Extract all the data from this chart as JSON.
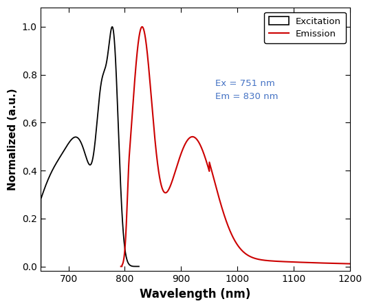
{
  "xlabel": "Wavelength (nm)",
  "ylabel": "Normalized (a.u.)",
  "xlim": [
    650,
    1200
  ],
  "ylim": [
    -0.02,
    1.08
  ],
  "excitation_color": "#000000",
  "emission_color": "#cc0000",
  "annotation_color": "#4472c4",
  "annotation_text": "Ex = 751 nm\nEm = 830 nm",
  "legend_labels": [
    "Excitation",
    "Emission"
  ],
  "yticks": [
    0.0,
    0.2,
    0.4,
    0.6,
    0.8,
    1.0
  ],
  "xticks": [
    700,
    800,
    900,
    1000,
    1100,
    1200
  ],
  "figsize": [
    5.38,
    4.48
  ],
  "dpi": 100
}
